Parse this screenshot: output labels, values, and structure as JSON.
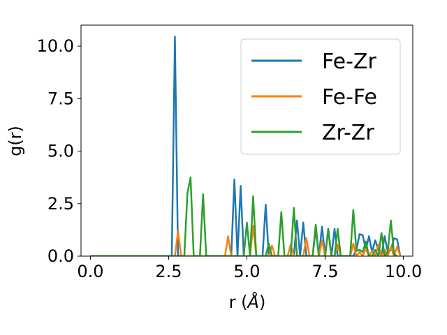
{
  "chart_data": {
    "type": "line",
    "title": "",
    "xlabel_prefix": "r (",
    "xlabel_unit": "Å",
    "xlabel_suffix": ")",
    "ylabel": "g(r)",
    "xlim": [
      -0.3,
      10.3
    ],
    "ylim": [
      0,
      11
    ],
    "xticks": [
      0.0,
      2.5,
      5.0,
      7.5,
      10.0
    ],
    "xtick_labels": [
      "0.0",
      "2.5",
      "5.0",
      "7.5",
      "10.0"
    ],
    "yticks": [
      0.0,
      2.5,
      5.0,
      7.5,
      10.0
    ],
    "ytick_labels": [
      "0.0",
      "2.5",
      "5.0",
      "7.5",
      "10.0"
    ],
    "grid": false,
    "legend_position": "top-right",
    "series": [
      {
        "name": "Fe-Zr",
        "color": "#1f77b4",
        "x": [
          0.0,
          2.6,
          2.7,
          2.8,
          4.5,
          4.6,
          4.7,
          4.8,
          4.9,
          5.4,
          5.5,
          5.6,
          5.7,
          6.4,
          6.5,
          6.6,
          6.7,
          6.8,
          6.9,
          7.0,
          7.1,
          7.2,
          7.3,
          7.4,
          7.5,
          7.6,
          7.7,
          7.8,
          7.9,
          8.0,
          8.1,
          8.2,
          8.3,
          8.4,
          8.5,
          8.6,
          8.7,
          8.8,
          8.9,
          9.0,
          9.1,
          9.2,
          9.3,
          9.4,
          9.5,
          9.6,
          9.7,
          9.8,
          9.9
        ],
        "y": [
          0.0,
          0.0,
          10.45,
          0.0,
          0.0,
          3.65,
          0.0,
          3.35,
          0.0,
          0.0,
          0.0,
          2.45,
          0.0,
          0.0,
          0.0,
          1.7,
          0.0,
          1.6,
          0.0,
          0.0,
          0.0,
          1.3,
          0.0,
          1.4,
          0.0,
          1.3,
          0.0,
          1.3,
          0.0,
          0.0,
          0.0,
          0.0,
          0.0,
          0.0,
          0.3,
          1.05,
          1.0,
          0.3,
          0.95,
          0.2,
          0.75,
          0.3,
          0.0,
          0.95,
          0.2,
          0.3,
          0.85,
          0.8,
          0.0
        ]
      },
      {
        "name": "Fe-Fe",
        "color": "#ff7f0e",
        "x": [
          0.0,
          2.7,
          2.8,
          2.9,
          4.3,
          4.4,
          4.5,
          5.1,
          5.2,
          5.3,
          5.7,
          5.8,
          5.9,
          6.3,
          6.4,
          6.5,
          6.8,
          6.9,
          7.0,
          7.3,
          7.4,
          7.5,
          7.8,
          7.9,
          8.0,
          8.3,
          8.4,
          8.5,
          8.6,
          8.7,
          8.8,
          8.9,
          9.0,
          9.1,
          9.2,
          9.3,
          9.4,
          9.5,
          9.6,
          9.7,
          9.8,
          9.9
        ],
        "y": [
          0.0,
          0.0,
          1.2,
          0.0,
          0.0,
          0.95,
          0.0,
          0.0,
          1.45,
          0.0,
          0.0,
          0.5,
          0.0,
          0.0,
          0.55,
          0.0,
          0.0,
          0.85,
          0.0,
          0.0,
          0.75,
          0.0,
          0.0,
          0.55,
          0.0,
          0.0,
          0.6,
          0.0,
          0.2,
          0.0,
          0.35,
          0.0,
          0.25,
          0.0,
          0.55,
          0.0,
          0.3,
          0.0,
          0.45,
          0.0,
          0.45,
          0.0
        ]
      },
      {
        "name": "Zr-Zr",
        "color": "#2ca02c",
        "x": [
          0.0,
          2.9,
          3.0,
          3.1,
          3.2,
          3.3,
          3.4,
          3.5,
          3.6,
          3.7,
          4.8,
          4.9,
          5.0,
          5.1,
          5.2,
          5.3,
          5.5,
          5.6,
          5.7,
          5.8,
          6.0,
          6.1,
          6.2,
          6.3,
          6.4,
          6.5,
          6.6,
          6.9,
          7.0,
          7.1,
          7.2,
          7.3,
          7.5,
          7.6,
          7.7,
          7.8,
          7.9,
          8.0,
          8.3,
          8.4,
          8.5,
          8.6,
          8.7,
          8.8,
          8.9,
          9.0,
          9.1,
          9.2,
          9.3,
          9.4,
          9.5,
          9.6,
          9.7,
          9.8
        ],
        "y": [
          0.0,
          0.0,
          0.0,
          3.0,
          3.75,
          0.0,
          0.0,
          0.0,
          2.95,
          0.0,
          0.0,
          0.0,
          1.6,
          0.0,
          2.85,
          0.0,
          0.0,
          0.0,
          0.6,
          0.0,
          0.0,
          2.1,
          0.0,
          0.0,
          0.0,
          2.3,
          0.0,
          0.0,
          0.0,
          0.0,
          1.5,
          0.0,
          0.0,
          1.25,
          0.0,
          0.0,
          1.3,
          0.0,
          0.0,
          2.2,
          0.25,
          0.3,
          0.2,
          0.7,
          0.0,
          0.0,
          0.3,
          0.0,
          1.1,
          0.0,
          0.2,
          1.7,
          0.1,
          0.0
        ]
      }
    ]
  }
}
